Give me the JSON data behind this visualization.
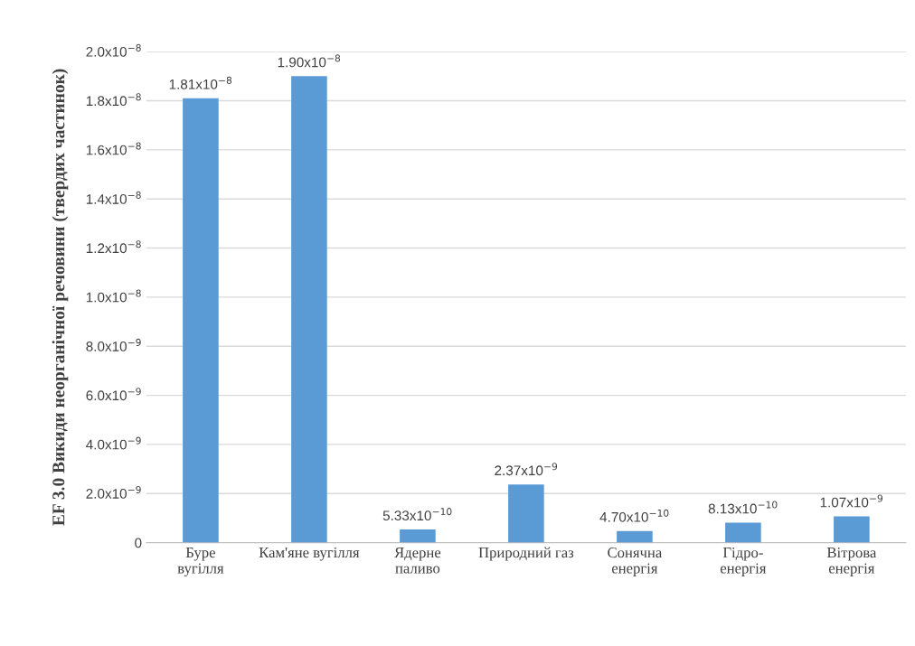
{
  "chart_data": {
    "type": "bar",
    "ylabel": "EF 3.0 Викиди неорганічної речовини (твердих частинок)",
    "categories": [
      "Буре\nвугілля",
      "Кам'яне вугілля",
      "Ядерне\nпаливо",
      "Природний газ",
      "Сонячна\nенергія",
      "Гідро-\nенергія",
      "Вітрова\nенергія"
    ],
    "values": [
      1.81e-08,
      1.9e-08,
      5.33e-10,
      2.37e-09,
      4.7e-10,
      8.13e-10,
      1.07e-09
    ],
    "value_labels": [
      "1.81x10$^{−8}$",
      "1.90x10$^{−8}$",
      "5.33x10$^{−10}$",
      "2.37x10$^{−9}$",
      "4.70x10$^{−10}$",
      "8.13x10$^{−10}$",
      "1.07x10$^{−9}$"
    ],
    "color": "#5b9bd5",
    "ylim": [
      0,
      2e-08
    ],
    "yticks": [
      {
        "value": 0,
        "label": "0"
      },
      {
        "value": 2e-09,
        "label": "2.0x10$^{−9}$"
      },
      {
        "value": 4e-09,
        "label": "4.0x10$^{−9}$"
      },
      {
        "value": 6e-09,
        "label": "6.0x10$^{−9}$"
      },
      {
        "value": 8e-09,
        "label": "8.0x10$^{−9}$"
      },
      {
        "value": 1e-08,
        "label": "1.0x10$^{−8}$"
      },
      {
        "value": 1.2e-08,
        "label": "1.2x10$^{−8}$"
      },
      {
        "value": 1.4e-08,
        "label": "1.4x10$^{−8}$"
      },
      {
        "value": 1.6e-08,
        "label": "1.6x10$^{−8}$"
      },
      {
        "value": 1.8e-08,
        "label": "1.8x10$^{−8}$"
      },
      {
        "value": 2e-08,
        "label": "2.0x10$^{−8}$"
      }
    ],
    "grid": "y"
  }
}
